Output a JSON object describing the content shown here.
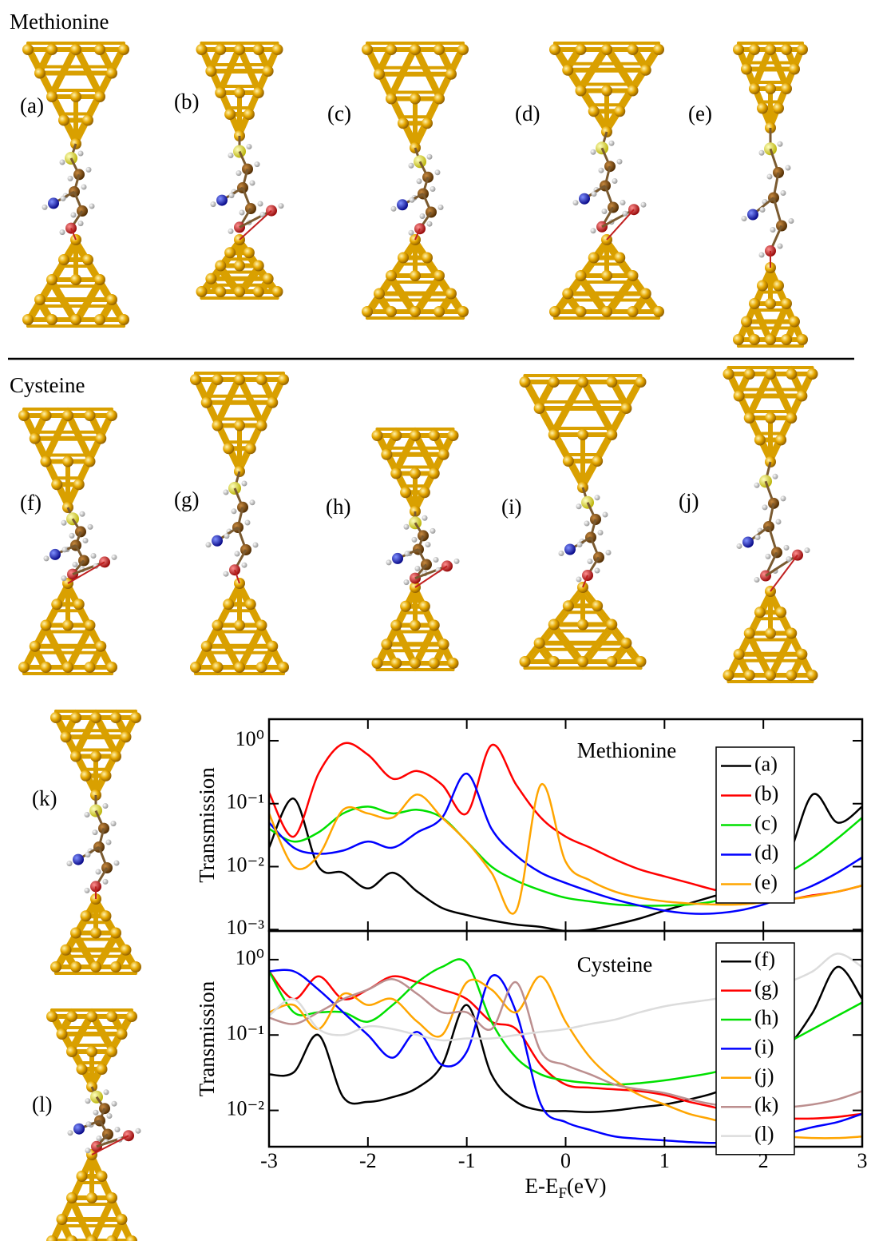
{
  "figure": {
    "sections": [
      "Methionine",
      "Cysteine"
    ],
    "panels": [
      "(a)",
      "(b)",
      "(c)",
      "(d)",
      "(e)",
      "(f)",
      "(g)",
      "(h)",
      "(i)",
      "(j)",
      "(k)",
      "(l)"
    ]
  },
  "chart_data": [
    {
      "type": "line",
      "annotation": "Methionine",
      "ylabel": "Transmission",
      "yscale": "log",
      "legend": "upper right",
      "grid": false,
      "xtick_labels": false,
      "xlim": [
        -3,
        3
      ],
      "xticks": [
        -3,
        -2,
        -1,
        0,
        1,
        2,
        3
      ],
      "ylim": [
        0.00095,
        2.2
      ],
      "yticks": [
        {
          "value": 0.001,
          "label": "10⁻³"
        },
        {
          "value": 0.01,
          "label": "10⁻²"
        },
        {
          "value": 0.1,
          "label": "10⁻¹"
        },
        {
          "value": 1,
          "label": "10⁰"
        }
      ],
      "x": [
        -3,
        -2.75,
        -2.5,
        -2.25,
        -2,
        -1.75,
        -1.5,
        -1.25,
        -1,
        -0.75,
        -0.5,
        -0.25,
        0,
        0.25,
        0.5,
        0.75,
        1,
        1.25,
        1.5,
        1.75,
        2,
        2.25,
        2.5,
        2.75,
        3
      ],
      "series": [
        {
          "name": "(a)",
          "color": "#000000",
          "values": [
            0.02,
            0.12,
            0.01,
            0.008,
            0.0045,
            0.008,
            0.004,
            0.0022,
            0.0017,
            0.0014,
            0.0012,
            0.0011,
            0.00095,
            0.001,
            0.0012,
            0.0015,
            0.002,
            0.0026,
            0.0034,
            0.0045,
            0.007,
            0.015,
            0.14,
            0.05,
            0.09
          ]
        },
        {
          "name": "(b)",
          "color": "#ff0000",
          "values": [
            0.15,
            0.03,
            0.3,
            0.9,
            0.6,
            0.25,
            0.33,
            0.2,
            0.07,
            0.85,
            0.2,
            0.06,
            0.03,
            0.02,
            0.013,
            0.009,
            0.007,
            0.0055,
            0.0043,
            0.0036,
            0.003,
            0.003,
            0.0035,
            0.004,
            0.005
          ]
        },
        {
          "name": "(c)",
          "color": "#00e000",
          "values": [
            0.04,
            0.025,
            0.035,
            0.07,
            0.09,
            0.07,
            0.08,
            0.06,
            0.025,
            0.01,
            0.006,
            0.0042,
            0.0032,
            0.0028,
            0.0025,
            0.0024,
            0.0024,
            0.0025,
            0.0028,
            0.0035,
            0.005,
            0.008,
            0.014,
            0.028,
            0.06
          ]
        },
        {
          "name": "(d)",
          "color": "#0000ff",
          "values": [
            0.05,
            0.02,
            0.016,
            0.018,
            0.025,
            0.02,
            0.035,
            0.06,
            0.3,
            0.04,
            0.015,
            0.008,
            0.0055,
            0.004,
            0.003,
            0.0024,
            0.002,
            0.0018,
            0.0018,
            0.002,
            0.0025,
            0.0035,
            0.005,
            0.008,
            0.014
          ]
        },
        {
          "name": "(e)",
          "color": "#ffa500",
          "values": [
            0.07,
            0.01,
            0.015,
            0.08,
            0.07,
            0.06,
            0.14,
            0.06,
            0.025,
            0.008,
            0.002,
            0.2,
            0.012,
            0.006,
            0.004,
            0.0032,
            0.0028,
            0.0026,
            0.0025,
            0.0025,
            0.0027,
            0.003,
            0.0034,
            0.004,
            0.005
          ]
        }
      ]
    },
    {
      "type": "line",
      "annotation": "Cysteine",
      "ylabel": "Transmission",
      "yscale": "log",
      "legend": "upper right",
      "grid": false,
      "xtick_labels": true,
      "xlabel": [
        "E-E",
        "F",
        "(eV)"
      ],
      "xlim": [
        -3,
        3
      ],
      "xticks": [
        -3,
        -2,
        -1,
        0,
        1,
        2,
        3
      ],
      "ylim": [
        0.0033,
        2.4
      ],
      "yticks": [
        {
          "value": 0.01,
          "label": "10⁻²"
        },
        {
          "value": 0.1,
          "label": "10⁻¹"
        },
        {
          "value": 1,
          "label": "10⁰"
        }
      ],
      "x": [
        -3,
        -2.75,
        -2.5,
        -2.25,
        -2,
        -1.75,
        -1.5,
        -1.25,
        -1,
        -0.75,
        -0.5,
        -0.25,
        0,
        0.25,
        0.5,
        0.75,
        1,
        1.25,
        1.5,
        1.75,
        2,
        2.25,
        2.5,
        2.75,
        3
      ],
      "series": [
        {
          "name": "(f)",
          "color": "#000000",
          "values": [
            0.03,
            0.032,
            0.1,
            0.015,
            0.013,
            0.015,
            0.02,
            0.04,
            0.25,
            0.03,
            0.013,
            0.01,
            0.0098,
            0.0095,
            0.01,
            0.011,
            0.012,
            0.014,
            0.017,
            0.024,
            0.04,
            0.07,
            0.2,
            0.8,
            0.3
          ]
        },
        {
          "name": "(g)",
          "color": "#ff0000",
          "values": [
            0.7,
            0.3,
            0.6,
            0.3,
            0.4,
            0.6,
            0.5,
            0.4,
            0.3,
            0.15,
            0.12,
            0.04,
            0.022,
            0.02,
            0.019,
            0.018,
            0.016,
            0.013,
            0.011,
            0.009,
            0.008,
            0.0078,
            0.0078,
            0.0082,
            0.009
          ]
        },
        {
          "name": "(h)",
          "color": "#00e000",
          "values": [
            0.7,
            0.2,
            0.2,
            0.2,
            0.15,
            0.25,
            0.5,
            0.8,
            0.9,
            0.15,
            0.05,
            0.03,
            0.025,
            0.023,
            0.022,
            0.023,
            0.025,
            0.028,
            0.032,
            0.04,
            0.055,
            0.08,
            0.12,
            0.18,
            0.27
          ]
        },
        {
          "name": "(i)",
          "color": "#0000ff",
          "values": [
            0.7,
            0.7,
            0.4,
            0.2,
            0.1,
            0.05,
            0.11,
            0.04,
            0.06,
            0.6,
            0.2,
            0.012,
            0.007,
            0.0055,
            0.0045,
            0.0042,
            0.004,
            0.0038,
            0.0037,
            0.0038,
            0.0042,
            0.005,
            0.006,
            0.007,
            0.009
          ]
        },
        {
          "name": "(j)",
          "color": "#ffa500",
          "values": [
            0.2,
            0.25,
            0.12,
            0.35,
            0.25,
            0.3,
            0.15,
            0.1,
            0.5,
            0.4,
            0.2,
            0.6,
            0.15,
            0.05,
            0.025,
            0.016,
            0.012,
            0.009,
            0.0075,
            0.006,
            0.005,
            0.0045,
            0.0043,
            0.0043,
            0.0045
          ]
        },
        {
          "name": "(k)",
          "color": "#bc8f8f",
          "values": [
            0.17,
            0.14,
            0.2,
            0.3,
            0.4,
            0.55,
            0.35,
            0.2,
            0.2,
            0.12,
            0.5,
            0.06,
            0.04,
            0.03,
            0.022,
            0.019,
            0.017,
            0.014,
            0.012,
            0.011,
            0.0105,
            0.011,
            0.012,
            0.014,
            0.018
          ]
        },
        {
          "name": "(l)",
          "color": "#dcdcdc",
          "values": [
            0.18,
            0.3,
            0.12,
            0.1,
            0.13,
            0.12,
            0.1,
            0.085,
            0.09,
            0.09,
            0.1,
            0.11,
            0.12,
            0.14,
            0.16,
            0.2,
            0.24,
            0.27,
            0.3,
            0.35,
            0.4,
            0.5,
            0.7,
            1.2,
            0.8
          ]
        }
      ]
    }
  ]
}
